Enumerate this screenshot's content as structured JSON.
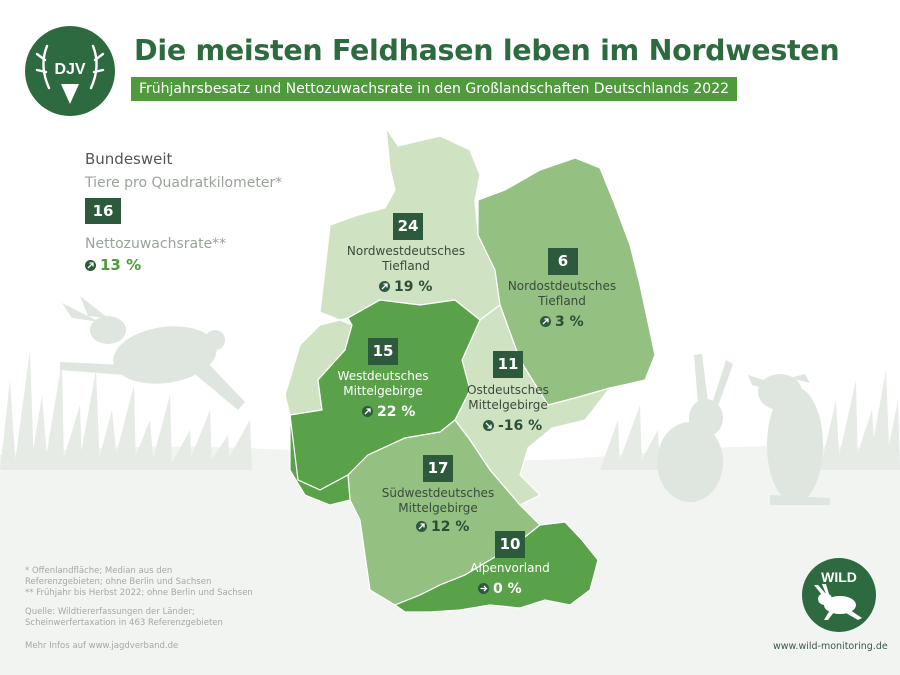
{
  "header": {
    "title": "Die meisten Feldhasen leben im Nordwesten",
    "subtitle": "Frühjahrsbesatz und Nettozuwachsrate in den Großlandschaften Deutschlands 2022"
  },
  "logos": {
    "djv_text": "DJV",
    "wild_text": "WILD",
    "wild_url": "www.wild-monitoring.de"
  },
  "national": {
    "heading": "Bundesweit",
    "density_label": "Tiere pro Quadratkilometer*",
    "density_value": "16",
    "rate_label": "Nettozuwachsrate**",
    "rate_value": "13 %",
    "rate_trend": "up"
  },
  "regions": [
    {
      "name_line1": "Nordwestdeutsches",
      "name_line2": "Tiefland",
      "density": "24",
      "rate": "19 %",
      "trend": "up"
    },
    {
      "name_line1": "Nordostdeutsches",
      "name_line2": "Tiefland",
      "density": "6",
      "rate": "3 %",
      "trend": "up"
    },
    {
      "name_line1": "Westdeutsches",
      "name_line2": "Mittelgebirge",
      "density": "15",
      "rate": "22 %",
      "trend": "up"
    },
    {
      "name_line1": "Ostdeutsches",
      "name_line2": "Mittelgebirge",
      "density": "11",
      "rate": "-16 %",
      "trend": "down"
    },
    {
      "name_line1": "Südwestdeutsches",
      "name_line2": "Mittelgebirge",
      "density": "17",
      "rate": "12 %",
      "trend": "up"
    },
    {
      "name_line1": "Alpenvorland",
      "name_line2": "",
      "density": "10",
      "rate": "0 %",
      "trend": "flat"
    }
  ],
  "colors": {
    "title_green": "#2d6a3f",
    "subtitle_bg": "#4e9a3c",
    "box_dark": "#2d5a3d",
    "map_light": "#cfe3c2",
    "map_medium": "#94c181",
    "map_dark": "#5aa24a",
    "silhouette": "#dfe5df"
  },
  "footnotes": {
    "note1_line1": "* Offenlandfläche; Median aus den",
    "note1_line2": "Referenzgebieten; ohne Berlin und Sachsen",
    "note2": "** Frühjahr bis Herbst 2022; ohne Berlin und Sachsen",
    "source_line1": "Quelle: Wildtiererfassungen der Länder;",
    "source_line2": "Scheinwerfertaxation in 463 Referenzgebieten",
    "more_info": "Mehr Infos auf www.jagdverband.de"
  }
}
